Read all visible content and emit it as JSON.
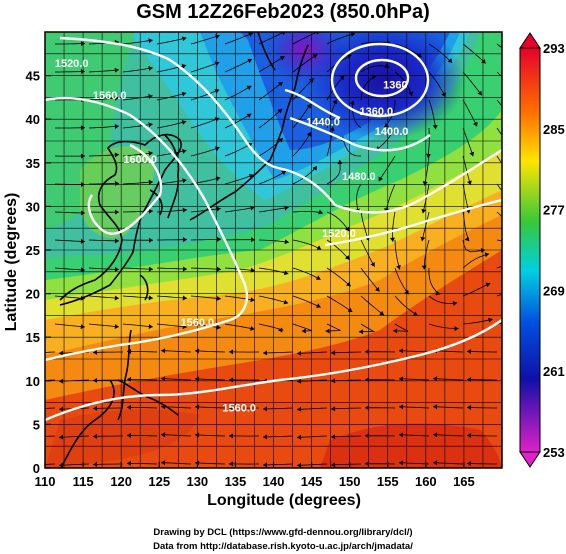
{
  "title": "GSM 12Z26Feb2023 (850.0hPa)",
  "xaxis": {
    "label": "Longitude (degrees)",
    "range": [
      110,
      170
    ],
    "ticks": [
      "110",
      "115",
      "120",
      "125",
      "130",
      "135",
      "140",
      "145",
      "150",
      "155",
      "160",
      "165"
    ]
  },
  "yaxis": {
    "label": "Latitude  (degrees)",
    "range": [
      0,
      50
    ],
    "ticks": [
      "0",
      "5",
      "10",
      "15",
      "20",
      "25",
      "30",
      "35",
      "40",
      "45"
    ]
  },
  "colorbar": {
    "ticks": [
      "293",
      "285",
      "277",
      "269",
      "261",
      "253"
    ],
    "colors": [
      "#e00030",
      "#ff6a00",
      "#ffe000",
      "#30c030",
      "#00c8e8",
      "#0040e0",
      "#1010b0",
      "#e020c0"
    ]
  },
  "contours": [
    {
      "label": "1360.0",
      "lat_label": 40.5,
      "lon_label": 153.5
    },
    {
      "label": "1400.0",
      "lat_label": 38.2,
      "lon_label": 155.5
    },
    {
      "label": "1440.0",
      "lat_label": 39.3,
      "lon_label": 146.5
    },
    {
      "label": "1480.0",
      "lat_label": 33.0,
      "lon_label": 151.2
    },
    {
      "label": "1520.0",
      "lat_label": 26.5,
      "lon_label": 148.6
    },
    {
      "label": "1560.0",
      "lat_label": 42.3,
      "lon_label": 118.5
    },
    {
      "label": "1600.0",
      "lat_label": 35.0,
      "lon_label": 122.5
    },
    {
      "label": "1560.0",
      "lat_label": 16.3,
      "lon_label": 130.0
    },
    {
      "label": "1560.0",
      "lat_label": 6.5,
      "lon_label": 135.5
    },
    {
      "label": "1520.0",
      "lat_label": 46.0,
      "lon_label": 113.5
    },
    {
      "label": "1360",
      "lat_label": 43.5,
      "lon_label": 156.0
    }
  ],
  "credits": {
    "line1": "Drawing by DCL (https://www.gfd-dennou.org/library/dcl/)",
    "line2": "Data from http://database.rish.kyoto-u.ac.jp/arch/jmadata/"
  }
}
